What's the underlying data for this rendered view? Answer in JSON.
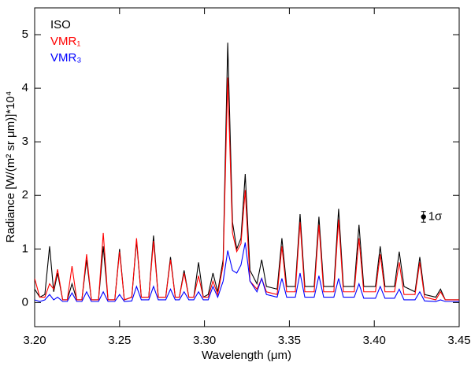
{
  "chart_data": {
    "type": "line",
    "xlabel": "Wavelength (μm)",
    "ylabel": "Radiance [W/(m² sr μm)]*10⁴",
    "xlim": [
      3.2,
      3.45
    ],
    "ylim": [
      -0.45,
      5.5
    ],
    "xticks": [
      {
        "value": 3.2,
        "label": "3.20"
      },
      {
        "value": 3.25,
        "label": "3.25"
      },
      {
        "value": 3.3,
        "label": "3.30"
      },
      {
        "value": 3.35,
        "label": "3.35"
      },
      {
        "value": 3.4,
        "label": "3.40"
      },
      {
        "value": 3.45,
        "label": "3.45"
      }
    ],
    "yticks": [
      0,
      1,
      2,
      3,
      4,
      5
    ],
    "legend": "upper left",
    "x": [
      3.2,
      3.203,
      3.206,
      3.2088,
      3.2112,
      3.2135,
      3.2165,
      3.2192,
      3.222,
      3.2248,
      3.2278,
      3.2306,
      3.2334,
      3.2376,
      3.2404,
      3.2432,
      3.2472,
      3.25,
      3.2528,
      3.2572,
      3.26,
      3.2628,
      3.2672,
      3.27,
      3.2728,
      3.2772,
      3.28,
      3.2828,
      3.2852,
      3.288,
      3.2908,
      3.2937,
      3.2965,
      3.2993,
      3.3022,
      3.305,
      3.3078,
      3.311,
      3.3137,
      3.3165,
      3.319,
      3.3215,
      3.324,
      3.3268,
      3.3309,
      3.3337,
      3.3365,
      3.3428,
      3.3456,
      3.3484,
      3.3535,
      3.3563,
      3.3591,
      3.3646,
      3.3674,
      3.3702,
      3.3762,
      3.379,
      3.3818,
      3.3882,
      3.391,
      3.3938,
      3.4007,
      3.4035,
      3.4063,
      3.4119,
      3.4147,
      3.4175,
      3.424,
      3.4268,
      3.4296,
      3.4362,
      3.439,
      3.4418,
      3.45
    ],
    "series": [
      {
        "name": "ISO",
        "color": "#000000",
        "values": [
          0.25,
          0.1,
          0.15,
          1.05,
          0.2,
          0.55,
          0.05,
          0.05,
          0.35,
          0.05,
          0.05,
          0.8,
          0.05,
          0.05,
          1.05,
          0.05,
          0.05,
          1.0,
          0.05,
          0.1,
          1.15,
          0.1,
          0.1,
          1.25,
          0.1,
          0.1,
          0.85,
          0.1,
          0.1,
          0.6,
          0.1,
          0.1,
          0.75,
          0.1,
          0.15,
          0.55,
          0.2,
          0.8,
          4.85,
          1.5,
          1.0,
          1.2,
          2.4,
          0.6,
          0.35,
          0.8,
          0.3,
          0.25,
          1.2,
          0.3,
          0.3,
          1.65,
          0.3,
          0.3,
          1.6,
          0.3,
          0.3,
          1.75,
          0.3,
          0.3,
          1.45,
          0.3,
          0.3,
          1.05,
          0.3,
          0.3,
          0.95,
          0.3,
          0.2,
          0.85,
          0.15,
          0.1,
          0.25,
          0.05,
          0.05
        ]
      },
      {
        "name": "VMR₁",
        "color": "#ff0000",
        "values": [
          0.45,
          0.1,
          0.1,
          0.35,
          0.25,
          0.62,
          0.05,
          0.05,
          0.68,
          0.05,
          0.05,
          0.9,
          0.05,
          0.05,
          1.3,
          0.05,
          0.05,
          0.95,
          0.05,
          0.1,
          1.2,
          0.1,
          0.1,
          1.15,
          0.1,
          0.1,
          0.8,
          0.1,
          0.1,
          0.55,
          0.1,
          0.1,
          0.5,
          0.1,
          0.1,
          0.4,
          0.15,
          0.7,
          4.2,
          1.3,
          0.95,
          1.1,
          2.1,
          0.4,
          0.25,
          0.45,
          0.2,
          0.15,
          1.05,
          0.2,
          0.2,
          1.5,
          0.2,
          0.2,
          1.45,
          0.2,
          0.2,
          1.55,
          0.2,
          0.2,
          1.2,
          0.2,
          0.2,
          0.9,
          0.2,
          0.2,
          0.75,
          0.15,
          0.15,
          0.75,
          0.1,
          0.05,
          0.2,
          0.05,
          0.05
        ]
      },
      {
        "name": "VMR₃",
        "color": "#0000ff",
        "values": [
          0.05,
          0.02,
          0.05,
          0.15,
          0.05,
          0.1,
          0.02,
          0.02,
          0.18,
          0.02,
          0.02,
          0.2,
          0.02,
          0.02,
          0.2,
          0.02,
          0.02,
          0.15,
          0.02,
          0.03,
          0.3,
          0.05,
          0.05,
          0.3,
          0.05,
          0.05,
          0.25,
          0.05,
          0.05,
          0.2,
          0.05,
          0.05,
          0.2,
          0.05,
          0.05,
          0.3,
          0.1,
          0.4,
          0.97,
          0.6,
          0.55,
          0.7,
          1.12,
          0.4,
          0.2,
          0.45,
          0.15,
          0.1,
          0.45,
          0.1,
          0.1,
          0.55,
          0.1,
          0.1,
          0.5,
          0.1,
          0.1,
          0.45,
          0.1,
          0.1,
          0.35,
          0.08,
          0.08,
          0.3,
          0.08,
          0.08,
          0.25,
          0.05,
          0.05,
          0.2,
          0.03,
          0.02,
          0.05,
          0.02,
          0.02
        ]
      }
    ],
    "annotation": {
      "text": "1σ",
      "x": 3.429,
      "y": 1.6,
      "error": 0.1
    }
  }
}
